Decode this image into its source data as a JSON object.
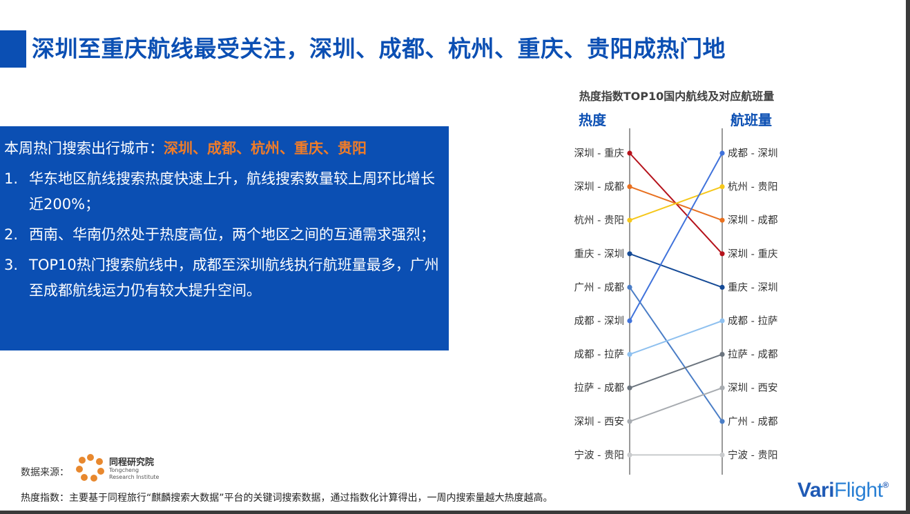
{
  "title": "深圳至重庆航线最受关注，深圳、成都、杭州、重庆、贵阳成热门地",
  "info": {
    "lead_label": "本周热门搜索出行城市：",
    "lead_cities": "深圳、成都、杭州、重庆、贵阳",
    "items": [
      {
        "num": "1.",
        "text": "华东地区航线搜索热度快速上升，航线搜索数量较上周环比增长近200%；"
      },
      {
        "num": "2.",
        "text": "西南、华南仍然处于热度高位，两个地区之间的互通需求强烈；"
      },
      {
        "num": "3.",
        "text": "TOP10热门搜索航线中，成都至深圳航线执行航班量最多，广州至成都航线运力仍有较大提升空间。"
      }
    ]
  },
  "chart_data": {
    "type": "slope",
    "title": "热度指数TOP10国内航线及对应航班量",
    "left_axis_label": "热度",
    "right_axis_label": "航班量",
    "left_rank": [
      "深圳 - 重庆",
      "深圳 - 成都",
      "杭州 - 贵阳",
      "重庆 - 深圳",
      "广州 - 成都",
      "成都 - 深圳",
      "成都 - 拉萨",
      "拉萨 - 成都",
      "深圳 - 西安",
      "宁波 - 贵阳"
    ],
    "right_rank": [
      "成都 - 深圳",
      "杭州 - 贵阳",
      "深圳 - 成都",
      "深圳 - 重庆",
      "重庆 - 深圳",
      "成都 - 拉萨",
      "拉萨 - 成都",
      "深圳 - 西安",
      "广州 - 成都",
      "宁波 - 贵阳"
    ],
    "series": [
      {
        "route": "深圳 - 重庆",
        "heat_rank": 1,
        "flight_rank": 4,
        "color": "#b5121b"
      },
      {
        "route": "深圳 - 成都",
        "heat_rank": 2,
        "flight_rank": 3,
        "color": "#e8701f"
      },
      {
        "route": "杭州 - 贵阳",
        "heat_rank": 3,
        "flight_rank": 2,
        "color": "#f5c71a"
      },
      {
        "route": "重庆 - 深圳",
        "heat_rank": 4,
        "flight_rank": 5,
        "color": "#154a96"
      },
      {
        "route": "广州 - 成都",
        "heat_rank": 5,
        "flight_rank": 9,
        "color": "#4a7dc6"
      },
      {
        "route": "成都 - 深圳",
        "heat_rank": 6,
        "flight_rank": 1,
        "color": "#3f72db"
      },
      {
        "route": "成都 - 拉萨",
        "heat_rank": 7,
        "flight_rank": 6,
        "color": "#8ec0ef"
      },
      {
        "route": "拉萨 - 成都",
        "heat_rank": 8,
        "flight_rank": 7,
        "color": "#6b747e"
      },
      {
        "route": "深圳 - 西安",
        "heat_rank": 9,
        "flight_rank": 8,
        "color": "#a7abb0"
      },
      {
        "route": "宁波 - 贵阳",
        "heat_rank": 10,
        "flight_rank": 10,
        "color": "#c8cacc"
      }
    ]
  },
  "source": {
    "label": "数据来源：",
    "logo_name": "同程研究院",
    "logo_en1": "Tongcheng",
    "logo_en2": "Research Institute",
    "logo_icon": "tongcheng-flower-logo"
  },
  "footnote": "热度指数：主要基于同程旅行“麒麟搜索大数据”平台的关键词搜索数据，通过指数化计算得出，一周内搜索量越大热度越高。",
  "brand": {
    "main": "Vari",
    "light": "Flight",
    "reg": "®"
  },
  "colors": {
    "accent": "#0b4fb3",
    "highlight": "#f07c28"
  }
}
